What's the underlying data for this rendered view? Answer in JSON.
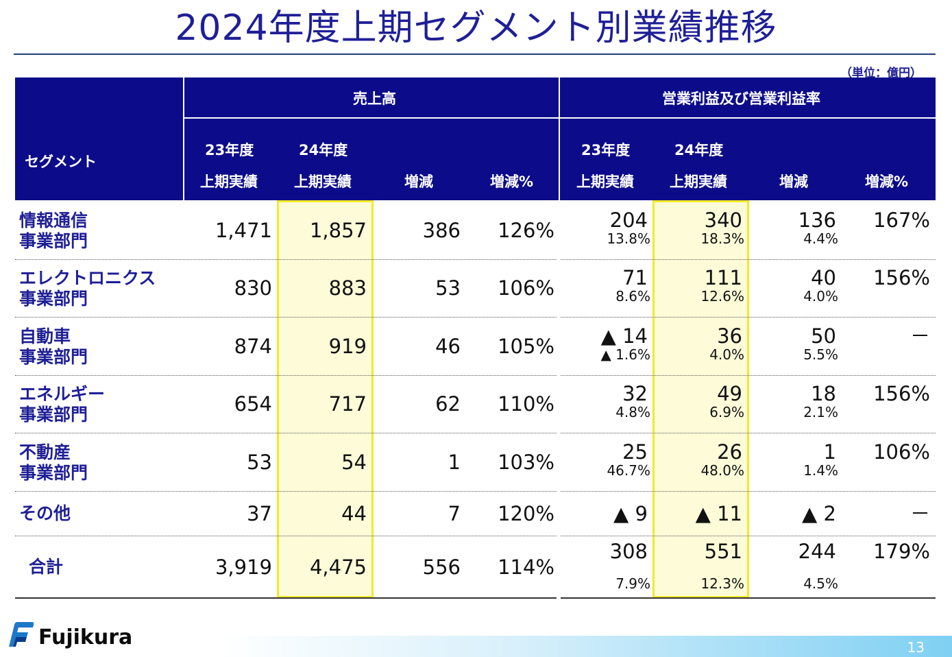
{
  "title": "2024年度上期セグメント別業績推移",
  "unit": "（単位：億円）",
  "header": {
    "segment": "セグメント",
    "sales_group": "売上高",
    "profit_group": "営業利益及び営業利益率",
    "col_prev_line1": "23年度",
    "col_prev_line2": "上期実績",
    "col_curr_line1": "24年度",
    "col_curr_line2": "上期実績",
    "col_diff": "増減",
    "col_pct": "増減%"
  },
  "rows": [
    {
      "name1": "情報通信",
      "name2": "事業部門",
      "s23": "1,471",
      "s24": "1,857",
      "sd": "386",
      "sp": "126%",
      "p23": "204",
      "r23": "13.8%",
      "p24": "340",
      "r24": "18.3%",
      "pd": "136",
      "rd": "4.4%",
      "pp": "167%"
    },
    {
      "name1": "エレクトロニクス",
      "name2": "事業部門",
      "s23": "830",
      "s24": "883",
      "sd": "53",
      "sp": "106%",
      "p23": "71",
      "r23": "8.6%",
      "p24": "111",
      "r24": "12.6%",
      "pd": "40",
      "rd": "4.0%",
      "pp": "156%"
    },
    {
      "name1": "自動車",
      "name2": "事業部門",
      "s23": "874",
      "s24": "919",
      "sd": "46",
      "sp": "105%",
      "p23": "▲ 14",
      "r23": "▲ 1.6%",
      "p24": "36",
      "r24": "4.0%",
      "pd": "50",
      "rd": "5.5%",
      "pp": "－"
    },
    {
      "name1": "エネルギー",
      "name2": "事業部門",
      "s23": "654",
      "s24": "717",
      "sd": "62",
      "sp": "110%",
      "p23": "32",
      "r23": "4.8%",
      "p24": "49",
      "r24": "6.9%",
      "pd": "18",
      "rd": "2.1%",
      "pp": "156%"
    },
    {
      "name1": "不動産",
      "name2": "事業部門",
      "s23": "53",
      "s24": "54",
      "sd": "1",
      "sp": "103%",
      "p23": "25",
      "r23": "46.7%",
      "p24": "26",
      "r24": "48.0%",
      "pd": "1",
      "rd": "1.4%",
      "pp": "106%"
    }
  ],
  "other": {
    "name": "その他",
    "s23": "37",
    "s24": "44",
    "sd": "7",
    "sp": "120%",
    "p23": "▲ 9",
    "p24": "▲ 11",
    "pd": "▲ 2",
    "pp": "－"
  },
  "total": {
    "name": "合計",
    "s23": "3,919",
    "s24": "4,475",
    "sd": "556",
    "sp": "114%",
    "p23": "308",
    "r23": "7.9%",
    "p24": "551",
    "r24": "12.3%",
    "pd": "244",
    "rd": "4.5%",
    "pp": "179%"
  },
  "footer": {
    "logo": "Fujikura",
    "page": "13"
  },
  "colors": {
    "header_bg": "#0c0c8a",
    "title": "#1f1f96",
    "highlight_bg": "#fdfbd8",
    "highlight_border": "#f2ea2c"
  }
}
